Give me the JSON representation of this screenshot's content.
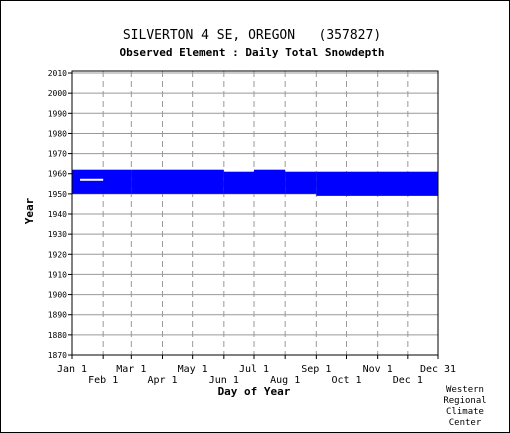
{
  "chart_data": {
    "type": "bar",
    "title": "SILVERTON 4 SE, OREGON   (357827)",
    "subtitle": "Observed Element : Daily Total Snowdepth",
    "xlabel": "Day of Year",
    "ylabel": "Year",
    "ylim": [
      1870,
      2011
    ],
    "y_ticks": [
      1870,
      1880,
      1890,
      1900,
      1910,
      1920,
      1930,
      1940,
      1950,
      1960,
      1970,
      1980,
      1990,
      2000,
      2010
    ],
    "x_range": [
      "Jan 1",
      "Dec 31"
    ],
    "x_ticks_row1": [
      {
        "label": "Jan 1",
        "day": 1
      },
      {
        "label": "Mar 1",
        "day": 60
      },
      {
        "label": "May 1",
        "day": 121
      },
      {
        "label": "Jul 1",
        "day": 182
      },
      {
        "label": "Sep 1",
        "day": 244
      },
      {
        "label": "Nov 1",
        "day": 305
      },
      {
        "label": "Dec 31",
        "day": 365
      }
    ],
    "x_ticks_row2": [
      {
        "label": "Feb 1",
        "day": 32
      },
      {
        "label": "Apr 1",
        "day": 91
      },
      {
        "label": "Jun 1",
        "day": 152
      },
      {
        "label": "Aug 1",
        "day": 213
      },
      {
        "label": "Oct 1",
        "day": 274
      },
      {
        "label": "Dec 1",
        "day": 335
      }
    ],
    "grid": true,
    "colors": {
      "coverage": "#0000ff",
      "snow": "#ffffff",
      "grid": "#999999"
    },
    "coverage_bands": [
      {
        "start_day": 1,
        "end_day": 60,
        "year_start": 1950,
        "year_end": 1962
      },
      {
        "start_day": 60,
        "end_day": 152,
        "year_start": 1950,
        "year_end": 1962
      },
      {
        "start_day": 152,
        "end_day": 182,
        "year_start": 1950,
        "year_end": 1961
      },
      {
        "start_day": 182,
        "end_day": 213,
        "year_start": 1950,
        "year_end": 1962
      },
      {
        "start_day": 213,
        "end_day": 244,
        "year_start": 1950,
        "year_end": 1961
      },
      {
        "start_day": 244,
        "end_day": 365,
        "year_start": 1949,
        "year_end": 1961
      }
    ],
    "snow_observations": [
      {
        "year": 1957,
        "start_day": 9,
        "end_day": 32
      }
    ]
  },
  "footer": {
    "credit_lines": [
      "Western",
      "Regional",
      "Climate",
      "Center"
    ]
  }
}
